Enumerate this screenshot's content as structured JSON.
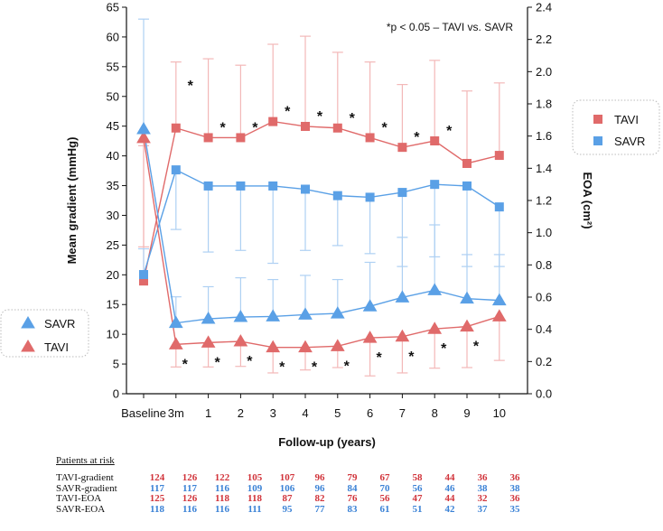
{
  "chart_data": {
    "type": "line",
    "annotation": "*p < 0.05 – TAVI vs. SAVR",
    "xlabel": "Follow-up (years)",
    "ylabel_left": "Mean gradient (mmHg)",
    "ylabel_right": "EOA (cm²)",
    "x_ticks": [
      "Baseline",
      "3m",
      "1",
      "2",
      "3",
      "4",
      "5",
      "6",
      "7",
      "8",
      "9",
      "10"
    ],
    "y_left": {
      "min": 0,
      "max": 65,
      "ticks": [
        0,
        5,
        10,
        15,
        20,
        25,
        30,
        35,
        40,
        45,
        50,
        55,
        60,
        65
      ]
    },
    "y_right": {
      "min": 0,
      "max": 2.4,
      "ticks": [
        "0.0",
        "0.2",
        "0.4",
        "0.6",
        "0.8",
        "1.0",
        "1.2",
        "1.4",
        "1.6",
        "1.8",
        "2.0",
        "2.2",
        "2.4"
      ]
    },
    "colors": {
      "tavi_line": "#e06a6a",
      "tavi_fill": "#e06a6a",
      "tavi_err": "#f3b8b8",
      "savr_line": "#5aa0e6",
      "savr_fill": "#5aa0e6",
      "savr_err": "#aed0f3"
    },
    "series": [
      {
        "name": "TAVI-EOA",
        "axis": "right",
        "marker": "square",
        "group": "TAVI",
        "values": [
          0.7,
          1.65,
          1.59,
          1.59,
          1.69,
          1.66,
          1.65,
          1.59,
          1.53,
          1.57,
          1.43,
          1.48
        ],
        "err_upper": [
          1.54,
          2.06,
          2.08,
          2.04,
          2.17,
          2.22,
          2.12,
          2.06,
          1.92,
          2.07,
          1.88,
          1.93
        ]
      },
      {
        "name": "SAVR-EOA",
        "axis": "right",
        "marker": "square",
        "group": "SAVR",
        "values": [
          0.74,
          1.39,
          1.29,
          1.29,
          1.29,
          1.27,
          1.23,
          1.22,
          1.25,
          1.3,
          1.29,
          1.16
        ],
        "err_upper": [
          0.9,
          1.02,
          0.88,
          0.89,
          0.81,
          0.89,
          0.92,
          0.87,
          0.79,
          0.85,
          0.79,
          0.79
        ]
      },
      {
        "name": "TAVI-gradient",
        "axis": "left",
        "marker": "triangle",
        "group": "TAVI",
        "values": [
          43,
          8.3,
          8.6,
          8.8,
          7.8,
          7.8,
          8.0,
          9.4,
          9.6,
          10.9,
          11.3,
          13.0
        ],
        "err_lower": [
          24.7,
          4.5,
          4.5,
          4.6,
          3.5,
          4.0,
          4.4,
          3.0,
          3.5,
          4.3,
          4.4,
          5.6
        ]
      },
      {
        "name": "SAVR-gradient",
        "axis": "left",
        "marker": "triangle",
        "group": "SAVR",
        "values": [
          44.5,
          11.9,
          12.6,
          12.9,
          13.0,
          13.3,
          13.5,
          14.7,
          16.2,
          17.4,
          16.0,
          15.7
        ],
        "err_upper": [
          63.0,
          16.3,
          18.0,
          19.5,
          19.2,
          19.9,
          19.2,
          22.1,
          26.3,
          28.4,
          23.4,
          23.4
        ]
      }
    ],
    "significance_markers": {
      "eoa_top": [
        "3m",
        "1",
        "2",
        "3",
        "4",
        "5",
        "6",
        "7",
        "8"
      ],
      "gradient_bottom": [
        "3m",
        "1",
        "2",
        "3",
        "4",
        "5",
        "6",
        "7",
        "8",
        "9"
      ],
      "symbol": "*"
    },
    "legends": [
      {
        "position": "right",
        "items": [
          {
            "label": "TAVI",
            "marker": "square",
            "group": "TAVI"
          },
          {
            "label": "SAVR",
            "marker": "square",
            "group": "SAVR"
          }
        ]
      },
      {
        "position": "left",
        "items": [
          {
            "label": "SAVR",
            "marker": "triangle",
            "group": "SAVR"
          },
          {
            "label": "TAVI",
            "marker": "triangle",
            "group": "TAVI"
          }
        ]
      }
    ]
  },
  "patients_at_risk": {
    "title": "Patients at risk",
    "rows": [
      {
        "label": "TAVI-gradient",
        "group": "TAVI",
        "values": [
          "124",
          "126",
          "122",
          "105",
          "107",
          "96",
          "79",
          "67",
          "58",
          "44",
          "36",
          "36"
        ]
      },
      {
        "label": "SAVR-gradient",
        "group": "SAVR",
        "values": [
          "117",
          "117",
          "116",
          "109",
          "106",
          "96",
          "84",
          "70",
          "56",
          "46",
          "38",
          "38"
        ]
      },
      {
        "label": "TAVI-EOA",
        "group": "TAVI",
        "values": [
          "125",
          "126",
          "118",
          "118",
          "87",
          "82",
          "76",
          "56",
          "47",
          "44",
          "32",
          "36"
        ]
      },
      {
        "label": "SAVR-EOA",
        "group": "SAVR",
        "values": [
          "118",
          "116",
          "116",
          "111",
          "95",
          "77",
          "83",
          "61",
          "51",
          "42",
          "37",
          "35"
        ]
      }
    ],
    "colors": {
      "TAVI": "#d1343b",
      "SAVR": "#3b82d6"
    }
  }
}
